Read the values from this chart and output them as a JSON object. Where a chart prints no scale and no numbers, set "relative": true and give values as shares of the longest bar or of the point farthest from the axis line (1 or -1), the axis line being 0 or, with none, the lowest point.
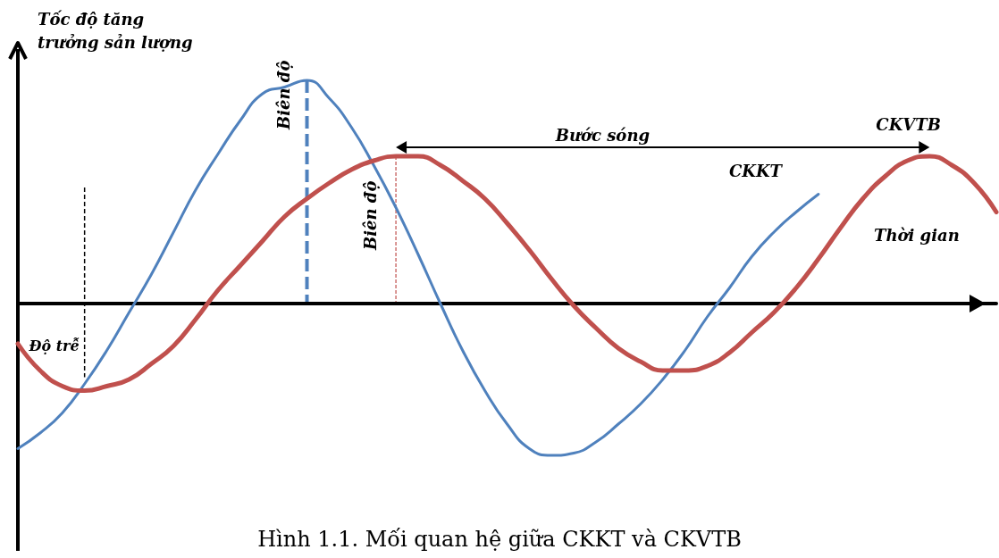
{
  "chart_data": {
    "type": "line",
    "relative": true,
    "ylabel": "Tốc độ tăng trưởng sản lượng",
    "xlabel": "Thời gian",
    "legend": false,
    "grid": false,
    "marker": "none",
    "line_style": "solid",
    "categories": [
      null,
      null,
      null,
      null,
      null,
      null,
      null,
      null,
      null,
      null,
      null,
      null,
      null,
      null,
      null,
      null,
      null,
      null,
      null,
      null,
      null,
      null,
      null,
      null,
      null,
      null,
      null,
      null,
      null,
      null,
      null,
      null,
      null,
      null,
      null,
      null,
      null,
      null,
      null,
      null,
      null,
      null,
      null,
      null,
      null
    ],
    "series": [
      {
        "name": "CKKT",
        "color": "#4f81bd",
        "values": [
          -0.65,
          -0.58,
          -0.49,
          -0.36,
          -0.21,
          -0.04,
          0.13,
          0.32,
          0.51,
          0.67,
          0.82,
          0.94,
          0.97,
          1,
          0.92,
          0.79,
          0.62,
          0.43,
          0.22,
          0,
          -0.21,
          -0.39,
          -0.54,
          -0.65,
          -0.68,
          -0.67,
          -0.62,
          -0.54,
          -0.45,
          -0.34,
          -0.21,
          -0.06,
          0.07,
          0.21,
          0.32,
          0.41,
          0.49,
          null,
          null,
          null,
          null,
          null,
          null,
          null,
          null
        ]
      },
      {
        "name": "CKVTB",
        "color": "#c0504d",
        "values": [
          -0.18,
          -0.3,
          -0.37,
          -0.39,
          -0.37,
          -0.34,
          -0.27,
          -0.19,
          -0.07,
          0.06,
          0.17,
          0.28,
          0.39,
          0.47,
          0.54,
          0.6,
          0.64,
          0.66,
          0.66,
          0.62,
          0.55,
          0.47,
          0.36,
          0.24,
          0.11,
          -0.01,
          -0.11,
          -0.2,
          -0.26,
          -0.3,
          -0.3,
          -0.28,
          -0.22,
          -0.13,
          -0.04,
          0.07,
          0.2,
          0.34,
          0.47,
          0.57,
          0.64,
          0.66,
          0.62,
          0.54,
          0.41
        ]
      }
    ],
    "annotations": [
      "Bước sóng",
      "Biên độ",
      "Biên độ",
      "Độ trễ",
      "Hình 1.1. Mối quan hệ giữa CKKT và CKVTB"
    ]
  }
}
